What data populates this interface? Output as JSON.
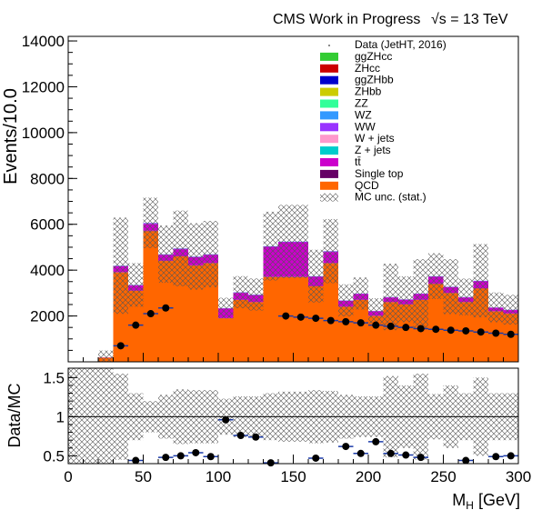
{
  "header": {
    "label": "CMS Work in Progress",
    "energy": "√s = 13 TeV"
  },
  "chart_data": [
    {
      "type": "bar",
      "panel": "main",
      "ylabel": "Events/10.0",
      "ylim": [
        0,
        14200
      ],
      "xlim": [
        0,
        300
      ],
      "yticks": [
        2000,
        4000,
        6000,
        8000,
        10000,
        12000,
        14000
      ],
      "xticks": [
        0,
        50,
        100,
        150,
        200,
        250,
        300
      ],
      "bin_edges": [
        0,
        10,
        20,
        30,
        40,
        50,
        60,
        70,
        80,
        90,
        100,
        110,
        120,
        130,
        140,
        150,
        160,
        170,
        180,
        190,
        200,
        210,
        220,
        230,
        240,
        250,
        260,
        270,
        280,
        290,
        300
      ],
      "stack": [
        {
          "name": "QCD",
          "color": "#ff6600",
          "values": [
            0,
            0,
            180,
            3900,
            3100,
            5700,
            4400,
            4600,
            4200,
            4300,
            1900,
            2700,
            2600,
            3700,
            3700,
            3700,
            3300,
            4300,
            2400,
            2700,
            2000,
            2600,
            2500,
            2700,
            3400,
            3000,
            2600,
            3200,
            2200,
            2100
          ]
        },
        {
          "name": "Single top",
          "color": "#660066",
          "values": [
            0,
            0,
            2,
            15,
            10,
            20,
            15,
            15,
            15,
            15,
            8,
            10,
            10,
            15,
            15,
            15,
            12,
            15,
            10,
            10,
            8,
            10,
            10,
            10,
            12,
            10,
            10,
            12,
            8,
            8
          ]
        },
        {
          "name": "tt̄",
          "color": "#cc00cc",
          "values": [
            0,
            0,
            10,
            250,
            220,
            300,
            250,
            300,
            350,
            350,
            420,
            300,
            300,
            1300,
            1500,
            1500,
            400,
            480,
            250,
            250,
            200,
            200,
            200,
            250,
            300,
            250,
            200,
            300,
            150,
            150
          ]
        },
        {
          "name": "Z + jets",
          "color": "#00cccc",
          "values": [
            0,
            0,
            0,
            0,
            0,
            0,
            0,
            0,
            0,
            0,
            0,
            0,
            0,
            0,
            0,
            0,
            0,
            0,
            0,
            0,
            0,
            0,
            0,
            0,
            0,
            0,
            0,
            0,
            0,
            0
          ]
        },
        {
          "name": "W + jets",
          "color": "#ff99cc",
          "values": [
            0,
            0,
            0,
            0,
            0,
            0,
            0,
            0,
            0,
            0,
            0,
            0,
            0,
            0,
            0,
            0,
            0,
            0,
            0,
            0,
            0,
            0,
            0,
            0,
            0,
            0,
            0,
            0,
            0,
            0
          ]
        },
        {
          "name": "WW",
          "color": "#9933ff",
          "values": [
            0,
            0,
            1,
            20,
            18,
            30,
            25,
            25,
            25,
            25,
            12,
            20,
            20,
            25,
            25,
            25,
            20,
            25,
            15,
            15,
            12,
            15,
            15,
            15,
            18,
            15,
            15,
            18,
            12,
            12
          ]
        },
        {
          "name": "WZ",
          "color": "#3399ff",
          "values": [
            0,
            0,
            0,
            5,
            5,
            8,
            6,
            6,
            6,
            6,
            3,
            5,
            5,
            6,
            6,
            6,
            5,
            6,
            4,
            4,
            3,
            4,
            4,
            4,
            5,
            4,
            4,
            5,
            3,
            3
          ]
        },
        {
          "name": "ZZ",
          "color": "#33ff99",
          "values": [
            0,
            0,
            0,
            3,
            3,
            4,
            3,
            3,
            3,
            3,
            2,
            3,
            3,
            3,
            3,
            3,
            3,
            3,
            2,
            2,
            2,
            2,
            2,
            2,
            3,
            2,
            2,
            3,
            2,
            2
          ]
        },
        {
          "name": "ZHbb",
          "color": "#cccc00",
          "values": [
            0,
            0,
            0,
            0,
            0,
            0,
            0,
            0,
            0,
            0,
            0,
            0,
            0,
            0,
            0,
            0,
            0,
            0,
            0,
            0,
            0,
            0,
            0,
            0,
            0,
            0,
            0,
            0,
            0,
            0
          ]
        },
        {
          "name": "ggZHbb",
          "color": "#0000cc",
          "values": [
            0,
            0,
            0,
            0,
            0,
            0,
            0,
            0,
            0,
            0,
            0,
            0,
            0,
            0,
            0,
            0,
            0,
            0,
            0,
            0,
            0,
            0,
            0,
            0,
            0,
            0,
            0,
            0,
            0,
            0
          ]
        },
        {
          "name": "ZHcc",
          "color": "#cc0000",
          "values": [
            0,
            0,
            0,
            0,
            0,
            0,
            0,
            0,
            0,
            0,
            0,
            0,
            0,
            0,
            0,
            0,
            0,
            0,
            0,
            0,
            0,
            0,
            0,
            0,
            0,
            0,
            0,
            0,
            0,
            0
          ]
        },
        {
          "name": "ggZHcc",
          "color": "#33cc33",
          "values": [
            0,
            0,
            0,
            0,
            0,
            0,
            0,
            0,
            0,
            0,
            0,
            0,
            0,
            0,
            0,
            0,
            0,
            0,
            0,
            0,
            0,
            0,
            0,
            0,
            0,
            0,
            0,
            0,
            0,
            0
          ]
        }
      ],
      "mc_unc_half": [
        0,
        0,
        300,
        2100,
        950,
        1100,
        1250,
        1650,
        1450,
        1450,
        450,
        700,
        700,
        1500,
        1600,
        1600,
        1150,
        1400,
        700,
        700,
        550,
        1450,
        1000,
        1500,
        1000,
        1200,
        800,
        1600,
        650,
        650
      ],
      "mc_unc_name": "MC unc. (stat.)",
      "data_name": "Data (JetHT, 2016)",
      "data": [
        {
          "x": 45,
          "y": 1600
        },
        {
          "x": 55,
          "y": 2100
        },
        {
          "x": 65,
          "y": 2350
        },
        {
          "x": 145,
          "y": 2000
        },
        {
          "x": 155,
          "y": 1950
        },
        {
          "x": 165,
          "y": 1900
        },
        {
          "x": 175,
          "y": 1800
        },
        {
          "x": 185,
          "y": 1750
        },
        {
          "x": 195,
          "y": 1700
        },
        {
          "x": 205,
          "y": 1600
        },
        {
          "x": 215,
          "y": 1550
        },
        {
          "x": 225,
          "y": 1500
        },
        {
          "x": 235,
          "y": 1450
        },
        {
          "x": 245,
          "y": 1420
        },
        {
          "x": 255,
          "y": 1380
        },
        {
          "x": 265,
          "y": 1350
        },
        {
          "x": 275,
          "y": 1300
        },
        {
          "x": 285,
          "y": 1250
        },
        {
          "x": 295,
          "y": 1200
        },
        {
          "x": 35,
          "y": 700
        }
      ],
      "legend_position": "top-right"
    },
    {
      "type": "scatter",
      "panel": "ratio",
      "ylabel": "Data/MC",
      "xlabel": "M_H [GeV]",
      "ylim": [
        0.4,
        1.62
      ],
      "yticks": [
        0.5,
        1,
        1.5
      ],
      "xlim": [
        0,
        300
      ],
      "reference_line": 1,
      "unc_band": [
        {
          "lo": 0.4,
          "hi": 1.62
        },
        {
          "lo": 0.4,
          "hi": 1.62
        },
        {
          "lo": 0.4,
          "hi": 1.62
        },
        {
          "lo": 0.45,
          "hi": 1.55
        },
        {
          "lo": 0.7,
          "hi": 1.3
        },
        {
          "lo": 0.8,
          "hi": 1.2
        },
        {
          "lo": 0.72,
          "hi": 1.28
        },
        {
          "lo": 0.65,
          "hi": 1.35
        },
        {
          "lo": 0.66,
          "hi": 1.34
        },
        {
          "lo": 0.66,
          "hi": 1.34
        },
        {
          "lo": 0.77,
          "hi": 1.23
        },
        {
          "lo": 0.74,
          "hi": 1.26
        },
        {
          "lo": 0.74,
          "hi": 1.26
        },
        {
          "lo": 0.7,
          "hi": 1.3
        },
        {
          "lo": 0.68,
          "hi": 1.32
        },
        {
          "lo": 0.68,
          "hi": 1.32
        },
        {
          "lo": 0.66,
          "hi": 1.34
        },
        {
          "lo": 0.67,
          "hi": 1.33
        },
        {
          "lo": 0.72,
          "hi": 1.28
        },
        {
          "lo": 0.74,
          "hi": 1.26
        },
        {
          "lo": 0.74,
          "hi": 1.26
        },
        {
          "lo": 0.48,
          "hi": 1.52
        },
        {
          "lo": 0.6,
          "hi": 1.4
        },
        {
          "lo": 0.45,
          "hi": 1.55
        },
        {
          "lo": 0.71,
          "hi": 1.29
        },
        {
          "lo": 0.6,
          "hi": 1.4
        },
        {
          "lo": 0.7,
          "hi": 1.3
        },
        {
          "lo": 0.5,
          "hi": 1.5
        },
        {
          "lo": 0.7,
          "hi": 1.3
        },
        {
          "lo": 0.7,
          "hi": 1.3
        }
      ],
      "points": [
        {
          "x": 45,
          "y": 0.44
        },
        {
          "x": 65,
          "y": 0.48
        },
        {
          "x": 75,
          "y": 0.5
        },
        {
          "x": 85,
          "y": 0.54
        },
        {
          "x": 95,
          "y": 0.49
        },
        {
          "x": 105,
          "y": 0.96
        },
        {
          "x": 115,
          "y": 0.76
        },
        {
          "x": 125,
          "y": 0.74
        },
        {
          "x": 135,
          "y": 0.41
        },
        {
          "x": 165,
          "y": 0.47
        },
        {
          "x": 185,
          "y": 0.62
        },
        {
          "x": 195,
          "y": 0.53
        },
        {
          "x": 205,
          "y": 0.68
        },
        {
          "x": 215,
          "y": 0.53
        },
        {
          "x": 225,
          "y": 0.51
        },
        {
          "x": 235,
          "y": 0.48
        },
        {
          "x": 265,
          "y": 0.44
        },
        {
          "x": 285,
          "y": 0.49
        },
        {
          "x": 295,
          "y": 0.5
        }
      ],
      "xticks": [
        0,
        50,
        100,
        150,
        200,
        250,
        300
      ]
    }
  ]
}
